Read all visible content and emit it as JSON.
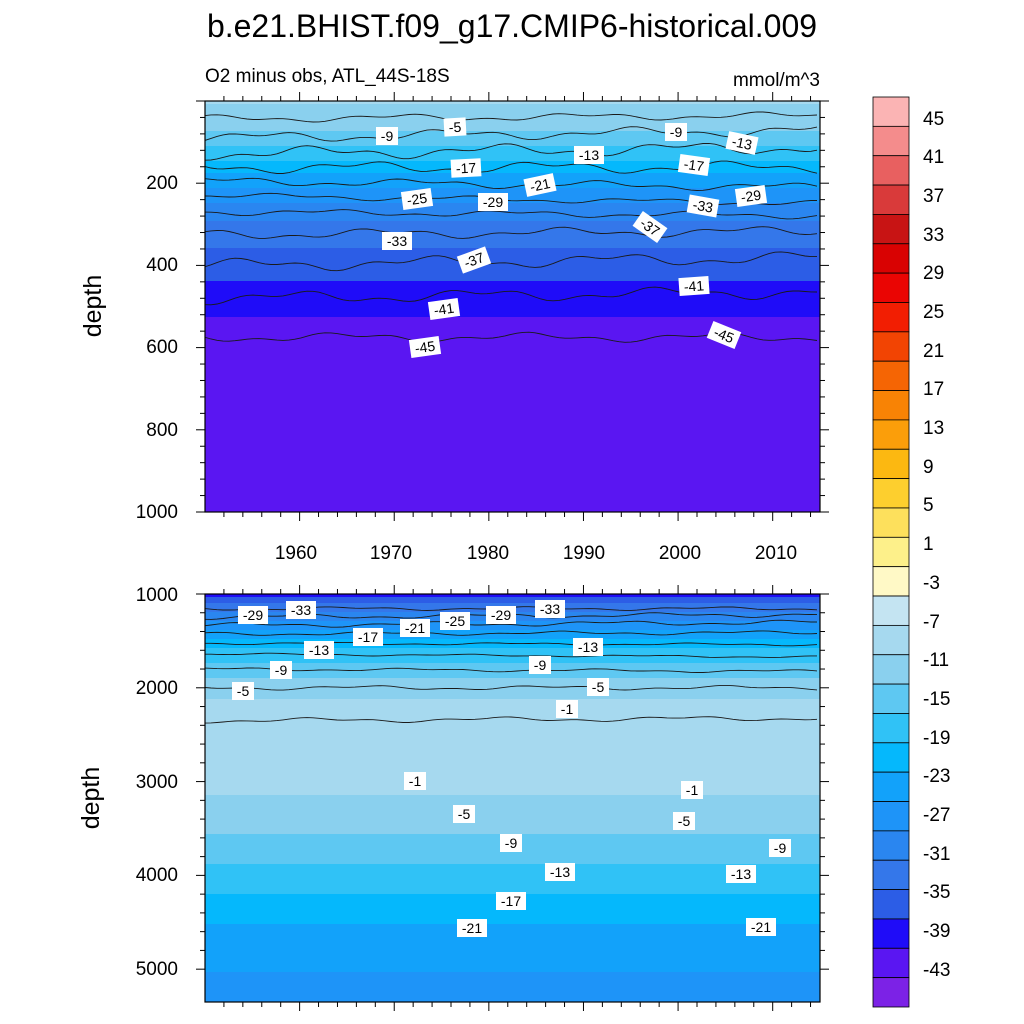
{
  "title": "b.e21.BHIST.f09_g17.CMIP6-historical.009",
  "colors": {
    "fill_levels": [
      "#7c22e6",
      "#5a16f2",
      "#1f0cf8",
      "#2c5de6",
      "#3477ea",
      "#2a86f0",
      "#1e94f8",
      "#12a2fa",
      "#05b8fc",
      "#30c2f6",
      "#5ec8f2",
      "#8ad0ee",
      "#a6d9ef",
      "#c4e4f2",
      "#fff9c6",
      "#fdf08a",
      "#fde05c",
      "#fdcf2e",
      "#fcb811",
      "#fb9e0a",
      "#f88305",
      "#f56504",
      "#f24403",
      "#f21e02",
      "#ea0503",
      "#d90202",
      "#c81414",
      "#d93a3a",
      "#e86060",
      "#f48c8c",
      "#fbb4b4"
    ],
    "contour_line": "#1a1a1a"
  },
  "colorbar": {
    "labels": [
      "45",
      "41",
      "37",
      "33",
      "29",
      "25",
      "21",
      "17",
      "13",
      "9",
      "5",
      "1",
      "-3",
      "-7",
      "-11",
      "-15",
      "-19",
      "-23",
      "-27",
      "-31",
      "-35",
      "-39",
      "-43"
    ]
  },
  "panels": {
    "upper": {
      "left_title": "O2 minus obs, ATL_44S-18S",
      "right_title": "mmol/m^3",
      "ylabel": "depth",
      "ytick_labels": [
        "200",
        "400",
        "600",
        "800",
        "1000"
      ],
      "xtick_labels": [
        "1960",
        "1970",
        "1980",
        "1990",
        "2000",
        "2010"
      ],
      "contour_labels": [
        "-5",
        "-9",
        "-9",
        "-13",
        "-13",
        "-17",
        "-17",
        "-21",
        "-25",
        "-29",
        "-29",
        "-33",
        "-33",
        "-37",
        "-37",
        "-41",
        "-41",
        "-45",
        "-45"
      ]
    },
    "lower": {
      "ylabel": "depth",
      "ytick_labels": [
        "1000",
        "2000",
        "3000",
        "4000",
        "5000"
      ],
      "contour_labels": [
        "-29",
        "-33",
        "-17",
        "-21",
        "-25",
        "-29",
        "-33",
        "-13",
        "-13",
        "-9",
        "-9",
        "-5",
        "-5",
        "-1",
        "-1",
        "-1",
        "-5",
        "-5",
        "-9",
        "-9",
        "-13",
        "-13",
        "-17",
        "-21",
        "-21"
      ]
    }
  },
  "chart_data": [
    {
      "type": "heatmap",
      "title": "b.e21.BHIST.f09_g17.CMIP6-historical.009",
      "subtitle_left": "O2 minus obs, ATL_44S-18S",
      "subtitle_right": "mmol/m^3",
      "xlabel": "",
      "ylabel": "depth",
      "xlim": [
        1950,
        2015
      ],
      "ylim": [
        1000,
        0
      ],
      "xticks": [
        1960,
        1970,
        1980,
        1990,
        2000,
        2010
      ],
      "yticks": [
        200,
        400,
        600,
        800,
        1000
      ],
      "contour_levels": [
        -45,
        -41,
        -37,
        -33,
        -29,
        -25,
        -21,
        -17,
        -13,
        -9,
        -5,
        -1
      ],
      "depth_profile": [
        {
          "depth": 10,
          "value": -3
        },
        {
          "depth": 60,
          "value": -6
        },
        {
          "depth": 120,
          "value": -12
        },
        {
          "depth": 170,
          "value": -18
        },
        {
          "depth": 220,
          "value": -24
        },
        {
          "depth": 280,
          "value": -30
        },
        {
          "depth": 340,
          "value": -34
        },
        {
          "depth": 420,
          "value": -38
        },
        {
          "depth": 500,
          "value": -42
        },
        {
          "depth": 600,
          "value": -46
        },
        {
          "depth": 1000,
          "value": -47
        }
      ]
    },
    {
      "type": "heatmap",
      "xlabel": "",
      "ylabel": "depth",
      "xlim": [
        1950,
        2015
      ],
      "ylim": [
        5350,
        1000
      ],
      "xticks": [
        1960,
        1970,
        1980,
        1990,
        2000,
        2010
      ],
      "yticks": [
        1000,
        2000,
        3000,
        4000,
        5000
      ],
      "contour_levels": [
        -33,
        -29,
        -25,
        -21,
        -17,
        -13,
        -9,
        -5,
        -1
      ],
      "depth_profile": [
        {
          "depth": 1000,
          "value": -40
        },
        {
          "depth": 1200,
          "value": -31
        },
        {
          "depth": 1400,
          "value": -22
        },
        {
          "depth": 1600,
          "value": -14
        },
        {
          "depth": 1800,
          "value": -9
        },
        {
          "depth": 2000,
          "value": -5
        },
        {
          "depth": 2200,
          "value": -2
        },
        {
          "depth": 2500,
          "value": 0
        },
        {
          "depth": 3000,
          "value": -2
        },
        {
          "depth": 3400,
          "value": -5
        },
        {
          "depth": 3800,
          "value": -10
        },
        {
          "depth": 4200,
          "value": -15
        },
        {
          "depth": 4600,
          "value": -20
        },
        {
          "depth": 5300,
          "value": -25
        }
      ]
    }
  ]
}
